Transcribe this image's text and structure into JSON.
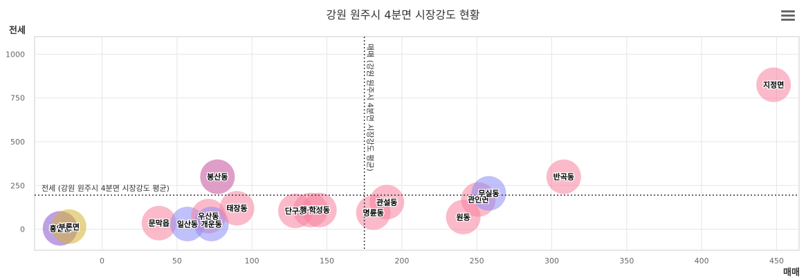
{
  "chart_data": {
    "type": "scatter",
    "title": "강원 원주시 4분면 시장강도 현황",
    "xlabel": "매매",
    "ylabel": "전세",
    "xlim": [
      -45,
      465
    ],
    "ylim": [
      -120,
      1100
    ],
    "x_ticks": [
      0,
      50,
      100,
      150,
      200,
      250,
      300,
      350,
      400,
      450
    ],
    "y_ticks": [
      0,
      250,
      500,
      750,
      1000
    ],
    "grid": true,
    "colors": {
      "pink": "#f7819f",
      "blue": "#8c8cf5",
      "gold": "#d4b232"
    },
    "reference_lines": {
      "x": {
        "value": 175,
        "label": "매매 (강원 원주시 4분면 시장강도 평균)"
      },
      "y": {
        "value": 195,
        "label": "전세 (강원 원주시 4분면 시장강도 평균)"
      }
    },
    "points": [
      {
        "label": "흥업면",
        "x": -28,
        "y": 5,
        "color": "pink"
      },
      {
        "label": "",
        "x": -28,
        "y": 5,
        "color": "blue"
      },
      {
        "label": "부론면",
        "x": -22,
        "y": 15,
        "color": "gold"
      },
      {
        "label": "문막읍",
        "x": 38,
        "y": 35,
        "color": "pink"
      },
      {
        "label": "일산동",
        "x": 57,
        "y": 30,
        "color": "blue"
      },
      {
        "label": "우산동",
        "x": 71,
        "y": 75,
        "color": "pink"
      },
      {
        "label": "개운동",
        "x": 73,
        "y": 30,
        "color": "blue"
      },
      {
        "label": "봉산동",
        "x": 77,
        "y": 300,
        "color": "blue"
      },
      {
        "label": "",
        "x": 77,
        "y": 300,
        "color": "pink"
      },
      {
        "label": "태장동",
        "x": 90,
        "y": 120,
        "color": "pink"
      },
      {
        "label": "단구동",
        "x": 129,
        "y": 105,
        "color": "pink"
      },
      {
        "label": "행구동",
        "x": 139,
        "y": 110,
        "color": "pink"
      },
      {
        "label": "학성동",
        "x": 145,
        "y": 110,
        "color": "pink"
      },
      {
        "label": "명륜동",
        "x": 181,
        "y": 95,
        "color": "pink"
      },
      {
        "label": "관설동",
        "x": 190,
        "y": 155,
        "color": "pink"
      },
      {
        "label": "원동",
        "x": 241,
        "y": 70,
        "color": "pink"
      },
      {
        "label": "관인면",
        "x": 251,
        "y": 170,
        "color": "pink"
      },
      {
        "label": "무실동",
        "x": 258,
        "y": 205,
        "color": "blue"
      },
      {
        "label": "반곡동",
        "x": 308,
        "y": 300,
        "color": "pink"
      },
      {
        "label": "지정면",
        "x": 448,
        "y": 825,
        "color": "pink"
      }
    ]
  }
}
